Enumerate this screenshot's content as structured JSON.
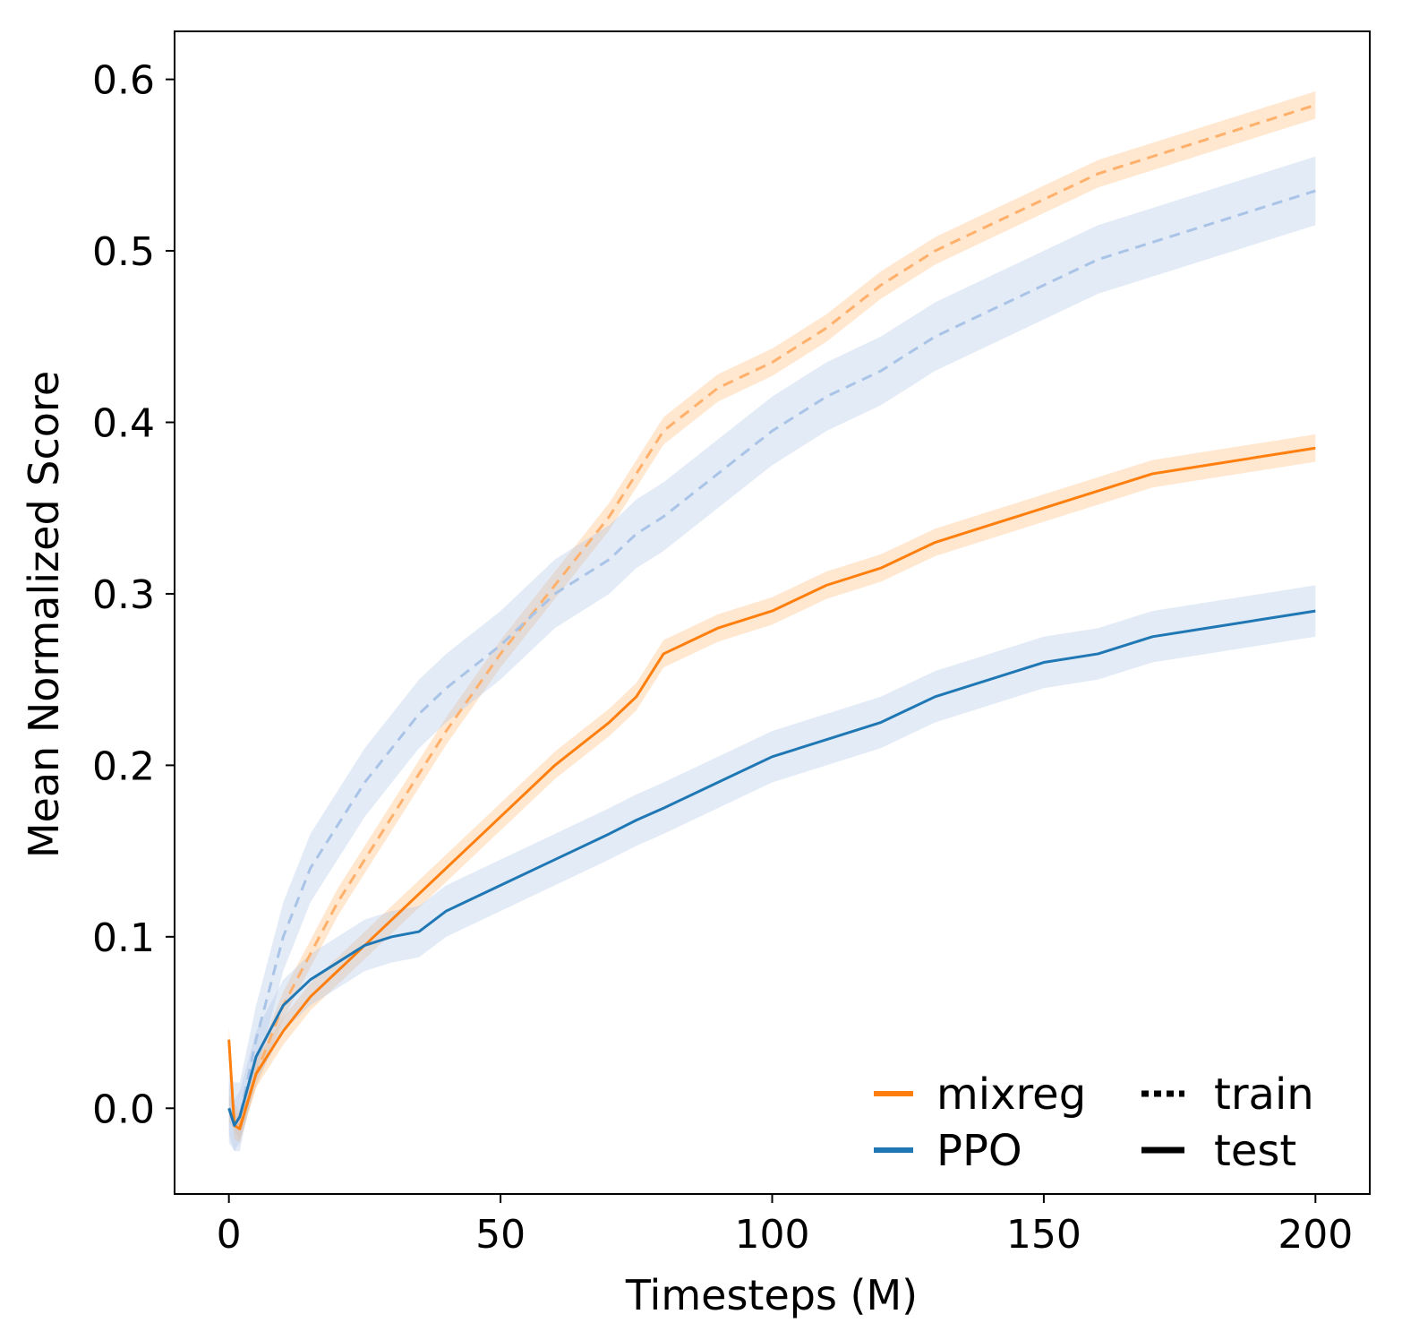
{
  "chart_data": {
    "type": "line",
    "xlabel": "Timesteps (M)",
    "ylabel": "Mean Normalized Score",
    "xlim": [
      -10,
      210
    ],
    "ylim": [
      -0.05,
      0.628
    ],
    "xticks": [
      0,
      50,
      100,
      150,
      200
    ],
    "yticks": [
      0.0,
      0.1,
      0.2,
      0.3,
      0.4,
      0.5,
      0.6
    ],
    "ytick_labels": [
      "0.0",
      "0.1",
      "0.2",
      "0.3",
      "0.4",
      "0.5",
      "0.6"
    ],
    "grid": false,
    "legend_placement": "bottom-right",
    "legend": {
      "methods": [
        {
          "name": "mixreg",
          "color": "#ff7f0e"
        },
        {
          "name": "PPO",
          "color": "#1f77b4"
        }
      ],
      "styles": [
        {
          "name": "train",
          "dash": "dotted"
        },
        {
          "name": "test",
          "dash": "solid"
        }
      ]
    },
    "x": [
      0,
      1,
      2,
      5,
      10,
      15,
      20,
      25,
      30,
      35,
      40,
      50,
      60,
      70,
      75,
      80,
      90,
      100,
      110,
      120,
      130,
      140,
      150,
      160,
      170,
      180,
      190,
      200
    ],
    "series": [
      {
        "method": "mixreg",
        "split": "train",
        "color": "#ffb06b",
        "band_color": "#ffbb78",
        "spread": 0.008,
        "values": [
          0.0,
          -0.005,
          -0.01,
          0.02,
          0.06,
          0.09,
          0.12,
          0.145,
          0.17,
          0.195,
          0.22,
          0.265,
          0.305,
          0.345,
          0.37,
          0.395,
          0.42,
          0.435,
          0.455,
          0.48,
          0.5,
          0.515,
          0.53,
          0.545,
          0.555,
          0.565,
          0.575,
          0.585
        ]
      },
      {
        "method": "PPO",
        "split": "train",
        "color": "#a9c4e6",
        "band_color": "#aec7e8",
        "spread": 0.02,
        "values": [
          0.0,
          -0.005,
          -0.005,
          0.04,
          0.1,
          0.14,
          0.165,
          0.19,
          0.21,
          0.23,
          0.245,
          0.27,
          0.3,
          0.32,
          0.335,
          0.345,
          0.37,
          0.395,
          0.415,
          0.43,
          0.45,
          0.465,
          0.48,
          0.495,
          0.505,
          0.515,
          0.525,
          0.535
        ]
      },
      {
        "method": "mixreg",
        "split": "test",
        "color": "#ff7f0e",
        "band_color": "#ffbb78",
        "spread": 0.008,
        "values": [
          0.04,
          -0.01,
          -0.012,
          0.02,
          0.045,
          0.065,
          0.08,
          0.095,
          0.11,
          0.125,
          0.14,
          0.17,
          0.2,
          0.225,
          0.24,
          0.265,
          0.28,
          0.29,
          0.305,
          0.315,
          0.33,
          0.34,
          0.35,
          0.36,
          0.37,
          0.375,
          0.38,
          0.385
        ]
      },
      {
        "method": "PPO",
        "split": "test",
        "color": "#1f77b4",
        "band_color": "#aec7e8",
        "spread": 0.015,
        "values": [
          0.0,
          -0.01,
          -0.005,
          0.03,
          0.06,
          0.075,
          0.085,
          0.095,
          0.1,
          0.103,
          0.115,
          0.13,
          0.145,
          0.16,
          0.168,
          0.175,
          0.19,
          0.205,
          0.215,
          0.225,
          0.24,
          0.25,
          0.26,
          0.265,
          0.275,
          0.28,
          0.285,
          0.29
        ]
      }
    ]
  }
}
